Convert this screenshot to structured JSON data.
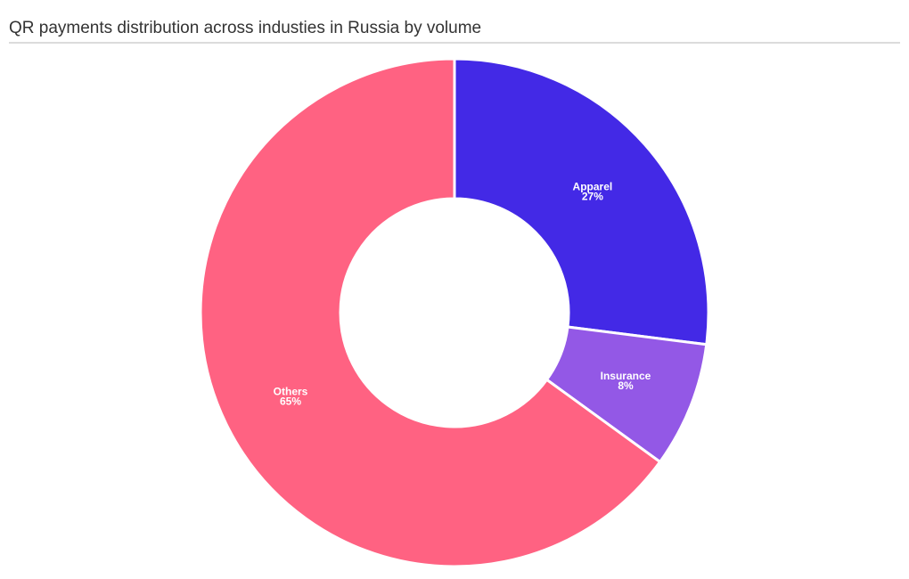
{
  "chart_data": {
    "type": "donut",
    "title": "QR payments distribution across industies in Russia by volume",
    "categories": [
      "Apparel",
      "Insurance",
      "Others"
    ],
    "values": [
      27,
      8,
      65
    ],
    "value_labels": [
      "27%",
      "8%",
      "65%"
    ],
    "colors": [
      "#4329e6",
      "#9358e6",
      "#ff6282"
    ]
  }
}
